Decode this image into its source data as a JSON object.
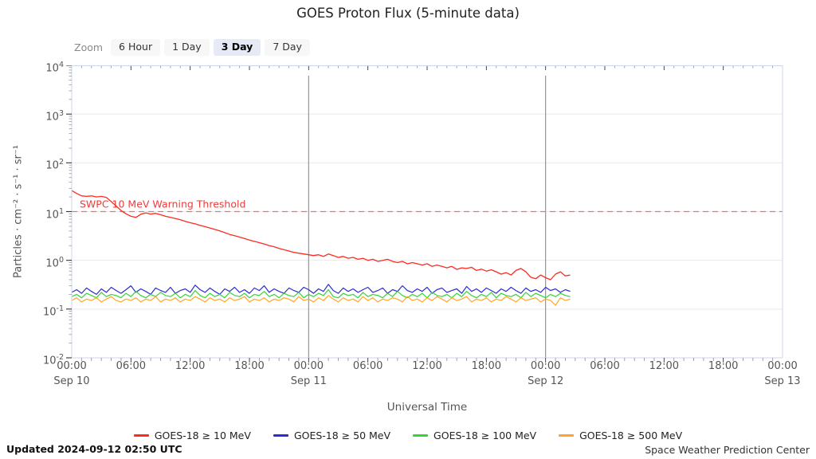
{
  "title": "GOES Proton Flux (5-minute data)",
  "toolbar": {
    "label": "Zoom",
    "options": [
      "6 Hour",
      "1 Day",
      "3 Day",
      "7 Day"
    ],
    "selected": "3 Day"
  },
  "footer": {
    "updated": "Updated 2024-09-12 02:50 UTC",
    "credit": "Space Weather Prediction Center"
  },
  "style": {
    "grid_color": "#e9e9e9",
    "day_line_color": "#8c8c8c",
    "plot_border_color": "#ccd6eb",
    "threshold_line_color": "#f47070",
    "threshold_text_color": "#ee3b3b",
    "axis_text_color": "#555555",
    "tick_major_color": "#333333",
    "tick_minor_color": "#999999",
    "button_bg": "#f7f7f7",
    "selected_button_bg": "#e6eaf6"
  },
  "chart_data": {
    "type": "line",
    "title": "GOES Proton Flux (5-minute data)",
    "xlabel": "Universal Time",
    "ylabel": "Particles · cm⁻² · s⁻¹ · sr⁻¹",
    "x_range_hours": [
      0,
      72
    ],
    "x_start_date": "Sep 10",
    "x_major_tick_hours": 6,
    "x_minor_tick_hours": 1,
    "x_tick_times": [
      "00:00",
      "06:00",
      "12:00",
      "18:00",
      "00:00",
      "06:00",
      "12:00",
      "18:00",
      "00:00",
      "06:00",
      "12:00",
      "18:00",
      "00:00"
    ],
    "x_dates": [
      {
        "hour": 0,
        "label": "Sep 10"
      },
      {
        "hour": 24,
        "label": "Sep 11"
      },
      {
        "hour": 48,
        "label": "Sep 12"
      },
      {
        "hour": 72,
        "label": "Sep 13"
      }
    ],
    "day_boundary_lines_hours": [
      24,
      48
    ],
    "y_log_exponents": [
      4,
      3,
      2,
      1,
      0,
      -1,
      -2
    ],
    "grid": true,
    "legend_position": "bottom",
    "threshold": {
      "value": 10,
      "label": "SWPC 10 MeV Warning Threshold"
    },
    "sample_step_hours": 0.5,
    "series": [
      {
        "name": "GOES-18 ≥ 10 MeV",
        "color": "#ff2a20",
        "values": [
          27,
          23.5,
          21,
          20.5,
          21,
          20,
          20.5,
          19.5,
          16,
          13,
          10.5,
          9.0,
          8.0,
          7.6,
          8.8,
          9.4,
          8.9,
          9.2,
          8.6,
          8.0,
          7.6,
          7.2,
          6.8,
          6.3,
          5.9,
          5.6,
          5.2,
          4.9,
          4.6,
          4.3,
          4.0,
          3.7,
          3.4,
          3.2,
          3.0,
          2.8,
          2.6,
          2.45,
          2.3,
          2.15,
          2.0,
          1.9,
          1.75,
          1.65,
          1.55,
          1.45,
          1.4,
          1.35,
          1.3,
          1.25,
          1.3,
          1.2,
          1.35,
          1.25,
          1.15,
          1.2,
          1.1,
          1.15,
          1.05,
          1.1,
          1.0,
          1.05,
          0.95,
          1.0,
          1.05,
          0.95,
          0.9,
          0.95,
          0.85,
          0.9,
          0.85,
          0.8,
          0.85,
          0.75,
          0.8,
          0.75,
          0.7,
          0.75,
          0.65,
          0.7,
          0.68,
          0.72,
          0.62,
          0.66,
          0.6,
          0.64,
          0.58,
          0.52,
          0.56,
          0.5,
          0.62,
          0.68,
          0.58,
          0.45,
          0.42,
          0.5,
          0.44,
          0.4,
          0.52,
          0.58,
          0.48,
          0.5
        ]
      },
      {
        "name": "GOES-18 ≥ 50 MeV",
        "color": "#2c2cd6",
        "values": [
          0.22,
          0.25,
          0.21,
          0.27,
          0.23,
          0.2,
          0.26,
          0.22,
          0.28,
          0.24,
          0.21,
          0.25,
          0.3,
          0.22,
          0.26,
          0.23,
          0.2,
          0.27,
          0.24,
          0.22,
          0.28,
          0.21,
          0.24,
          0.26,
          0.22,
          0.31,
          0.25,
          0.22,
          0.27,
          0.23,
          0.2,
          0.26,
          0.23,
          0.28,
          0.22,
          0.25,
          0.21,
          0.27,
          0.24,
          0.3,
          0.22,
          0.26,
          0.23,
          0.21,
          0.27,
          0.24,
          0.22,
          0.28,
          0.25,
          0.21,
          0.26,
          0.23,
          0.32,
          0.24,
          0.21,
          0.27,
          0.23,
          0.26,
          0.22,
          0.25,
          0.28,
          0.22,
          0.24,
          0.27,
          0.21,
          0.25,
          0.23,
          0.3,
          0.24,
          0.22,
          0.26,
          0.23,
          0.28,
          0.21,
          0.25,
          0.27,
          0.22,
          0.24,
          0.26,
          0.21,
          0.29,
          0.23,
          0.26,
          0.22,
          0.27,
          0.24,
          0.21,
          0.26,
          0.23,
          0.28,
          0.24,
          0.21,
          0.27,
          0.23,
          0.25,
          0.22,
          0.28,
          0.24,
          0.26,
          0.22,
          0.25,
          0.23
        ]
      },
      {
        "name": "GOES-18 ≥ 100 MeV",
        "color": "#35d435",
        "values": [
          0.18,
          0.2,
          0.17,
          0.21,
          0.19,
          0.17,
          0.22,
          0.18,
          0.2,
          0.19,
          0.17,
          0.21,
          0.18,
          0.23,
          0.19,
          0.17,
          0.2,
          0.18,
          0.22,
          0.19,
          0.18,
          0.21,
          0.17,
          0.2,
          0.18,
          0.24,
          0.19,
          0.17,
          0.21,
          0.18,
          0.2,
          0.17,
          0.22,
          0.19,
          0.18,
          0.21,
          0.17,
          0.2,
          0.19,
          0.23,
          0.18,
          0.2,
          0.17,
          0.21,
          0.19,
          0.18,
          0.22,
          0.17,
          0.2,
          0.18,
          0.21,
          0.19,
          0.25,
          0.18,
          0.17,
          0.21,
          0.19,
          0.2,
          0.17,
          0.22,
          0.18,
          0.2,
          0.19,
          0.17,
          0.21,
          0.18,
          0.23,
          0.19,
          0.17,
          0.2,
          0.18,
          0.21,
          0.17,
          0.22,
          0.19,
          0.18,
          0.2,
          0.17,
          0.21,
          0.18,
          0.23,
          0.19,
          0.17,
          0.2,
          0.18,
          0.22,
          0.17,
          0.21,
          0.19,
          0.18,
          0.2,
          0.17,
          0.22,
          0.18,
          0.21,
          0.19,
          0.17,
          0.2,
          0.18,
          0.21,
          0.19,
          0.18
        ]
      },
      {
        "name": "GOES-18 ≥ 500 MeV",
        "color": "#ffa428",
        "values": [
          0.15,
          0.17,
          0.14,
          0.16,
          0.15,
          0.17,
          0.14,
          0.16,
          0.18,
          0.15,
          0.14,
          0.16,
          0.15,
          0.17,
          0.14,
          0.16,
          0.15,
          0.18,
          0.14,
          0.16,
          0.15,
          0.17,
          0.14,
          0.16,
          0.15,
          0.18,
          0.16,
          0.14,
          0.17,
          0.15,
          0.16,
          0.14,
          0.17,
          0.15,
          0.16,
          0.18,
          0.14,
          0.16,
          0.15,
          0.17,
          0.14,
          0.16,
          0.15,
          0.17,
          0.16,
          0.14,
          0.18,
          0.15,
          0.16,
          0.14,
          0.17,
          0.15,
          0.19,
          0.16,
          0.14,
          0.17,
          0.15,
          0.16,
          0.14,
          0.18,
          0.15,
          0.17,
          0.14,
          0.16,
          0.15,
          0.17,
          0.16,
          0.14,
          0.18,
          0.15,
          0.16,
          0.14,
          0.17,
          0.15,
          0.18,
          0.16,
          0.14,
          0.17,
          0.15,
          0.16,
          0.18,
          0.14,
          0.16,
          0.15,
          0.17,
          0.14,
          0.16,
          0.15,
          0.18,
          0.16,
          0.14,
          0.17,
          0.15,
          0.16,
          0.17,
          0.14,
          0.16,
          0.15,
          0.12,
          0.17,
          0.15,
          0.16
        ]
      }
    ]
  }
}
